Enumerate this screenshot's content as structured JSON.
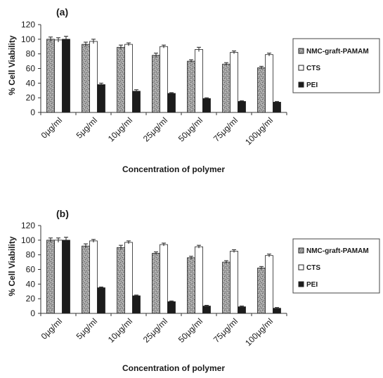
{
  "colors": {
    "nmc": "#9a9a9a",
    "cts": "#ffffff",
    "pei": "#1c1c1c",
    "axis": "#333333",
    "legend_border": "#444444"
  },
  "chart_data": [
    {
      "type": "bar",
      "panel_label": "(a)",
      "categories": [
        "0μg/ml",
        "5μg/ml",
        "10μg/ml",
        "25μg/ml",
        "50μg/ml",
        "75μg/ml",
        "100μg/ml"
      ],
      "series": [
        {
          "name": "NMC-graft-PAMAM",
          "values": [
            100,
            93,
            89,
            78,
            70,
            66,
            61
          ],
          "errors": [
            3,
            3,
            3,
            3,
            2,
            2,
            2
          ]
        },
        {
          "name": "CTS",
          "values": [
            99,
            97,
            93,
            90,
            86,
            82,
            79
          ],
          "errors": [
            3,
            3,
            2,
            2,
            3,
            2,
            2
          ]
        },
        {
          "name": "PEI",
          "values": [
            100,
            38,
            29,
            26,
            19,
            15,
            14
          ],
          "errors": [
            4,
            2,
            2,
            1,
            1,
            1,
            1
          ]
        }
      ],
      "xlabel": "Concentration of polymer",
      "ylabel": "% Cell Viability",
      "ylim": [
        0,
        120
      ],
      "yticks": [
        0,
        20,
        40,
        60,
        80,
        100,
        120
      ],
      "legend_position": "right"
    },
    {
      "type": "bar",
      "panel_label": "(b)",
      "categories": [
        "0μg/ml",
        "5μg/ml",
        "10μg/ml",
        "25μg/ml",
        "50μg/ml",
        "75μg/ml",
        "100μg/ml"
      ],
      "series": [
        {
          "name": "NMC-graft-PAMAM",
          "values": [
            100,
            92,
            90,
            82,
            76,
            70,
            62
          ],
          "errors": [
            3,
            3,
            3,
            2,
            2,
            2,
            2
          ]
        },
        {
          "name": "CTS",
          "values": [
            100,
            99,
            97,
            94,
            91,
            85,
            79
          ],
          "errors": [
            3,
            2,
            2,
            2,
            2,
            2,
            2
          ]
        },
        {
          "name": "PEI",
          "values": [
            100,
            35,
            24,
            16,
            10,
            9,
            7
          ],
          "errors": [
            4,
            1,
            1,
            1,
            1,
            1,
            1
          ]
        }
      ],
      "xlabel": "Concentration of polymer",
      "ylabel": "% Cell Viability",
      "ylim": [
        0,
        120
      ],
      "yticks": [
        0,
        20,
        40,
        60,
        80,
        100,
        120
      ],
      "legend_position": "right"
    }
  ]
}
